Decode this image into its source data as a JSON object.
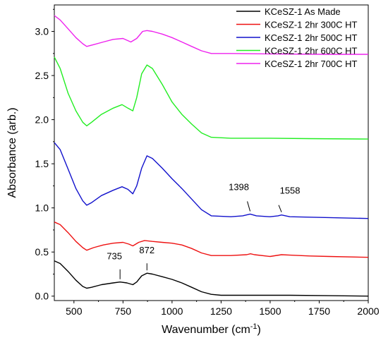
{
  "chart_data": {
    "type": "line",
    "xlabel": "Wavenumber (cm",
    "xlabel_sup": "-1",
    "xlabel_end": ")",
    "ylabel": "Absorbance (arb.)",
    "xlim": [
      400,
      2000
    ],
    "ylim": [
      -0.05,
      3.3
    ],
    "xticks": [
      500,
      750,
      1000,
      1250,
      1500,
      1750,
      2000
    ],
    "yticks": [
      0.0,
      0.5,
      1.0,
      1.5,
      2.0,
      2.5,
      3.0
    ],
    "xtick_labels": [
      "500",
      "750",
      "1000",
      "1250",
      "1500",
      "1750",
      "2000"
    ],
    "ytick_labels": [
      "0.0",
      "0.5",
      "1.0",
      "1.5",
      "2.0",
      "2.5",
      "3.0"
    ],
    "legend_position": "top-right",
    "series": [
      {
        "name": "KCeSZ-1 As Made",
        "color": "#000000",
        "points": [
          [
            400,
            0.4
          ],
          [
            430,
            0.37
          ],
          [
            470,
            0.28
          ],
          [
            510,
            0.18
          ],
          [
            545,
            0.11
          ],
          [
            565,
            0.09
          ],
          [
            590,
            0.1
          ],
          [
            640,
            0.13
          ],
          [
            700,
            0.15
          ],
          [
            735,
            0.16
          ],
          [
            770,
            0.15
          ],
          [
            800,
            0.13
          ],
          [
            820,
            0.16
          ],
          [
            845,
            0.23
          ],
          [
            872,
            0.26
          ],
          [
            900,
            0.25
          ],
          [
            950,
            0.22
          ],
          [
            1000,
            0.19
          ],
          [
            1050,
            0.15
          ],
          [
            1100,
            0.1
          ],
          [
            1150,
            0.05
          ],
          [
            1200,
            0.02
          ],
          [
            1250,
            0.01
          ],
          [
            1400,
            0.01
          ],
          [
            1600,
            0.01
          ],
          [
            1800,
            0.005
          ],
          [
            2000,
            0.0
          ]
        ]
      },
      {
        "name": "KCeSZ-1 2hr 300C HT",
        "color": "#ee1111",
        "points": [
          [
            400,
            0.84
          ],
          [
            430,
            0.81
          ],
          [
            470,
            0.72
          ],
          [
            510,
            0.62
          ],
          [
            545,
            0.55
          ],
          [
            565,
            0.52
          ],
          [
            600,
            0.55
          ],
          [
            650,
            0.58
          ],
          [
            700,
            0.6
          ],
          [
            750,
            0.61
          ],
          [
            780,
            0.59
          ],
          [
            800,
            0.57
          ],
          [
            830,
            0.61
          ],
          [
            860,
            0.63
          ],
          [
            900,
            0.62
          ],
          [
            950,
            0.61
          ],
          [
            1000,
            0.6
          ],
          [
            1050,
            0.58
          ],
          [
            1100,
            0.54
          ],
          [
            1150,
            0.49
          ],
          [
            1200,
            0.46
          ],
          [
            1300,
            0.46
          ],
          [
            1380,
            0.47
          ],
          [
            1400,
            0.48
          ],
          [
            1420,
            0.47
          ],
          [
            1500,
            0.45
          ],
          [
            1558,
            0.47
          ],
          [
            1600,
            0.465
          ],
          [
            1700,
            0.455
          ],
          [
            1800,
            0.45
          ],
          [
            2000,
            0.44
          ]
        ]
      },
      {
        "name": "KCeSZ-1 2hr 500C HT",
        "color": "#1111cc",
        "points": [
          [
            400,
            1.74
          ],
          [
            430,
            1.66
          ],
          [
            470,
            1.44
          ],
          [
            510,
            1.22
          ],
          [
            545,
            1.08
          ],
          [
            565,
            1.03
          ],
          [
            590,
            1.06
          ],
          [
            640,
            1.14
          ],
          [
            700,
            1.2
          ],
          [
            745,
            1.24
          ],
          [
            775,
            1.21
          ],
          [
            800,
            1.16
          ],
          [
            820,
            1.25
          ],
          [
            845,
            1.45
          ],
          [
            872,
            1.59
          ],
          [
            900,
            1.56
          ],
          [
            950,
            1.45
          ],
          [
            1000,
            1.33
          ],
          [
            1050,
            1.22
          ],
          [
            1100,
            1.1
          ],
          [
            1150,
            0.98
          ],
          [
            1200,
            0.91
          ],
          [
            1300,
            0.9
          ],
          [
            1360,
            0.91
          ],
          [
            1398,
            0.93
          ],
          [
            1430,
            0.91
          ],
          [
            1500,
            0.9
          ],
          [
            1540,
            0.91
          ],
          [
            1558,
            0.92
          ],
          [
            1600,
            0.9
          ],
          [
            1800,
            0.89
          ],
          [
            2000,
            0.88
          ]
        ]
      },
      {
        "name": "KCeSZ-1 2hr 600C HT",
        "color": "#22ee22",
        "points": [
          [
            400,
            2.71
          ],
          [
            430,
            2.58
          ],
          [
            470,
            2.3
          ],
          [
            510,
            2.1
          ],
          [
            545,
            1.97
          ],
          [
            565,
            1.93
          ],
          [
            590,
            1.97
          ],
          [
            640,
            2.06
          ],
          [
            700,
            2.13
          ],
          [
            745,
            2.17
          ],
          [
            775,
            2.13
          ],
          [
            800,
            2.1
          ],
          [
            820,
            2.25
          ],
          [
            845,
            2.52
          ],
          [
            872,
            2.62
          ],
          [
            900,
            2.58
          ],
          [
            950,
            2.4
          ],
          [
            1000,
            2.2
          ],
          [
            1050,
            2.06
          ],
          [
            1100,
            1.95
          ],
          [
            1150,
            1.85
          ],
          [
            1200,
            1.8
          ],
          [
            1300,
            1.79
          ],
          [
            1500,
            1.79
          ],
          [
            1700,
            1.785
          ],
          [
            2000,
            1.78
          ]
        ]
      },
      {
        "name": "KCeSZ-1 2hr 700C HT",
        "color": "#ee22ee",
        "points": [
          [
            400,
            3.18
          ],
          [
            430,
            3.13
          ],
          [
            470,
            3.03
          ],
          [
            510,
            2.93
          ],
          [
            545,
            2.86
          ],
          [
            565,
            2.83
          ],
          [
            600,
            2.85
          ],
          [
            650,
            2.88
          ],
          [
            700,
            2.91
          ],
          [
            750,
            2.92
          ],
          [
            790,
            2.88
          ],
          [
            820,
            2.92
          ],
          [
            850,
            3.0
          ],
          [
            872,
            3.01
          ],
          [
            900,
            3.0
          ],
          [
            950,
            2.97
          ],
          [
            1000,
            2.93
          ],
          [
            1050,
            2.88
          ],
          [
            1100,
            2.83
          ],
          [
            1150,
            2.78
          ],
          [
            1200,
            2.75
          ],
          [
            1300,
            2.75
          ],
          [
            1500,
            2.745
          ],
          [
            1800,
            2.74
          ],
          [
            2000,
            2.74
          ]
        ]
      }
    ],
    "annotations": [
      {
        "text": "735",
        "x": 735,
        "y": 0.16
      },
      {
        "text": "872",
        "x": 872,
        "y": 0.26
      },
      {
        "text": "1398",
        "x": 1398,
        "y": 0.93
      },
      {
        "text": "1558",
        "x": 1558,
        "y": 0.92
      }
    ]
  }
}
